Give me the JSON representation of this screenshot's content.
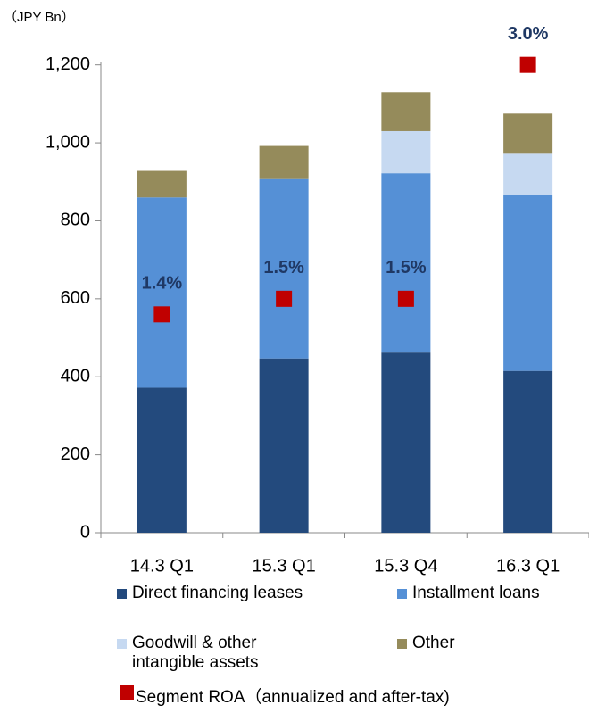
{
  "chart_data": {
    "type": "stacked_bar",
    "unit_label": "（JPY Bn）",
    "categories": [
      "14.3 Q1",
      "15.3 Q1",
      "15.3 Q4",
      "16.3 Q1"
    ],
    "series": [
      {
        "name": "Direct financing leases",
        "color": "#234a7d",
        "values": [
          372,
          447,
          462,
          415
        ]
      },
      {
        "name": "Installment loans",
        "color": "#5590d6",
        "values": [
          488,
          460,
          460,
          452
        ]
      },
      {
        "name": "Goodwill & other intangible assets",
        "color": "#c6d9f1",
        "values": [
          0,
          0,
          108,
          105
        ]
      },
      {
        "name": "Other",
        "color": "#958b5b",
        "values": [
          68,
          85,
          100,
          103
        ]
      },
      {
        "name": "Segment ROA（annualized and after-tax)",
        "color": "#c00000",
        "axis": "y2",
        "marker": "square",
        "values": [
          1.4,
          1.5,
          1.5,
          3.0
        ],
        "value_labels": [
          "1.4%",
          "1.5%",
          "1.5%",
          "3.0%"
        ]
      }
    ],
    "ylim": [
      0,
      1300
    ],
    "yticks": [
      0,
      200,
      400,
      600,
      800,
      {
        "value": 1000,
        "label": "1,000"
      },
      {
        "value": 1200,
        "label": "1,200"
      }
    ],
    "y2lim": [
      0,
      3.25
    ]
  }
}
